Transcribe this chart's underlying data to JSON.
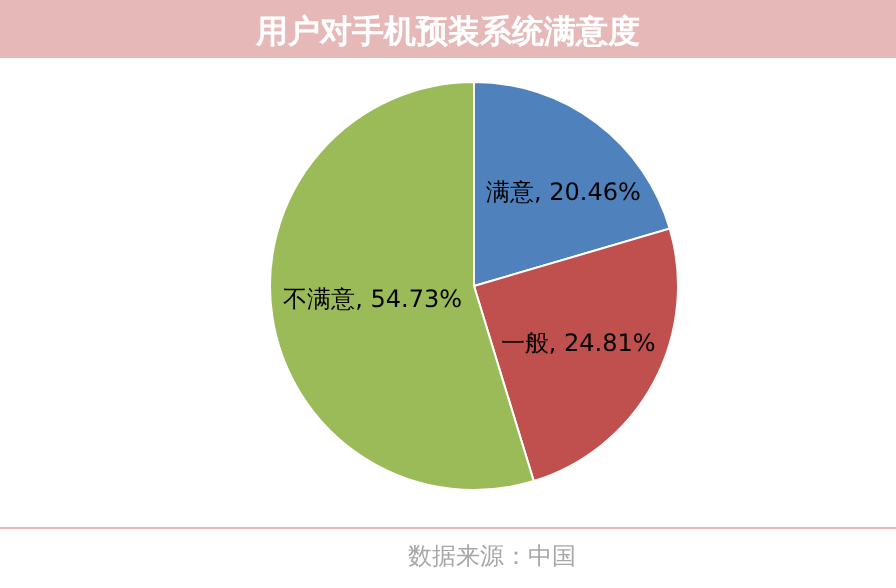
{
  "chart_data": {
    "type": "pie",
    "title": "用户对手机预装系统满意度",
    "categories": [
      "满意",
      "一般",
      "不满意"
    ],
    "values": [
      20.46,
      24.81,
      54.73
    ],
    "colors": [
      "#4f81bd",
      "#c0504d",
      "#9bbb59"
    ],
    "value_labels": [
      "20.46%",
      "24.81%",
      "54.73%"
    ],
    "annotations": [
      "数据来源：中国"
    ]
  }
}
